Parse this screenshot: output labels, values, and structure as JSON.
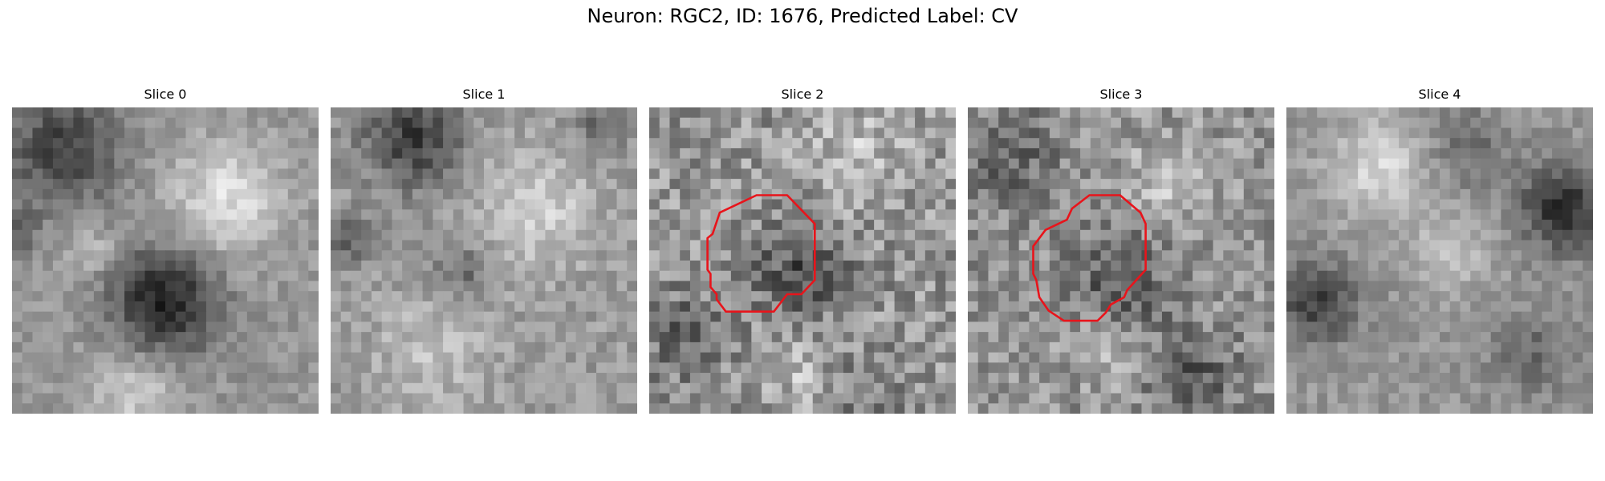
{
  "figure": {
    "title": "Neuron: RGC2, ID: 1676, Predicted Label: CV"
  },
  "panels": [
    {
      "title": "Slice 0",
      "seed": 11,
      "pattern": "slice0",
      "contour": false
    },
    {
      "title": "Slice 1",
      "seed": 23,
      "pattern": "slice1",
      "contour": false
    },
    {
      "title": "Slice 2",
      "seed": 37,
      "pattern": "slice2",
      "contour": true
    },
    {
      "title": "Slice 3",
      "seed": 41,
      "pattern": "slice3",
      "contour": true
    },
    {
      "title": "Slice 4",
      "seed": 59,
      "pattern": "slice4",
      "contour": false
    }
  ],
  "colors": {
    "contour": "#e8141b",
    "colormap": "gray"
  },
  "image": {
    "grid": 30
  }
}
